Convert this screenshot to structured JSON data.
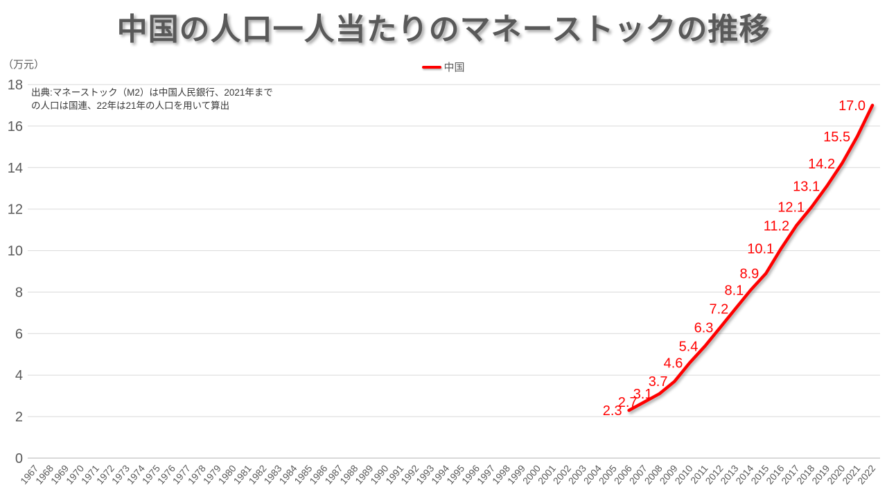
{
  "chart_data": {
    "type": "line",
    "title": "中国の人口一人当たりのマネーストックの推移",
    "unit_label": "（万元）",
    "source_note": {
      "line1": "出典:マネーストック（M2）は中国人民銀行、2021年まで",
      "line2": "の人口は国連、22年は21年の人口を用いて算出"
    },
    "legend": {
      "label": "中国",
      "position": "top-center"
    },
    "ylim": [
      0,
      18
    ],
    "ytick_step": 2,
    "grid": true,
    "categories": [
      "1967",
      "1968",
      "1969",
      "1970",
      "1971",
      "1972",
      "1973",
      "1974",
      "1975",
      "1976",
      "1977",
      "1978",
      "1979",
      "1980",
      "1981",
      "1982",
      "1983",
      "1984",
      "1985",
      "1986",
      "1987",
      "1988",
      "1989",
      "1990",
      "1991",
      "1992",
      "1993",
      "1994",
      "1995",
      "1996",
      "1997",
      "1998",
      "1999",
      "2000",
      "2001",
      "2002",
      "2003",
      "2004",
      "2005",
      "2006",
      "2007",
      "2008",
      "2009",
      "2010",
      "2011",
      "2012",
      "2013",
      "2014",
      "2015",
      "2016",
      "2017",
      "2018",
      "2019",
      "2020",
      "2021",
      "2022"
    ],
    "series": [
      {
        "name": "中国",
        "color": "#ff0000",
        "start_category": "2006",
        "values": [
          2.3,
          2.7,
          3.1,
          3.7,
          4.6,
          5.4,
          6.3,
          7.2,
          8.1,
          8.9,
          10.1,
          11.2,
          12.1,
          13.1,
          14.2,
          15.5,
          17.0
        ],
        "data_labels": true
      }
    ],
    "colors": {
      "grid": "#d9d9d9",
      "axis": "#b3b3b3",
      "tick_label": "#595959",
      "title": "#595959",
      "note": "#383838",
      "series_red": "#ff0000",
      "background": "#ffffff"
    }
  }
}
